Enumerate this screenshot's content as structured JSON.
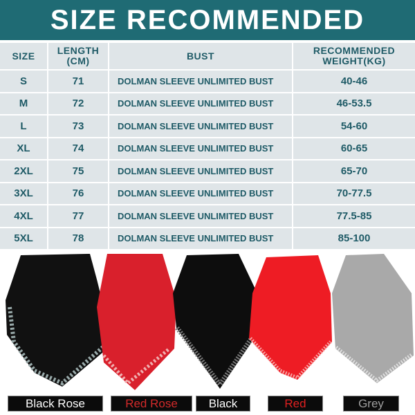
{
  "title": "SIZE RECOMMENDED",
  "table": {
    "headers": [
      "SIZE",
      "LENGTH (CM)",
      "BUST",
      "RECOMMENDED WEIGHT(KG)"
    ],
    "header_lines": {
      "length": [
        "LENGTH",
        "(CM)"
      ],
      "weight": [
        "RECOMMENDED",
        "WEIGHT(KG)"
      ]
    },
    "rows": [
      {
        "size": "S",
        "length": "71",
        "bust": "DOLMAN SLEEVE UNLIMITED BUST",
        "weight": "40-46"
      },
      {
        "size": "M",
        "length": "72",
        "bust": "DOLMAN SLEEVE UNLIMITED BUST",
        "weight": "46-53.5"
      },
      {
        "size": "L",
        "length": "73",
        "bust": "DOLMAN SLEEVE UNLIMITED BUST",
        "weight": "54-60"
      },
      {
        "size": "XL",
        "length": "74",
        "bust": "DOLMAN SLEEVE UNLIMITED BUST",
        "weight": "60-65"
      },
      {
        "size": "2XL",
        "length": "75",
        "bust": "DOLMAN SLEEVE UNLIMITED BUST",
        "weight": "65-70"
      },
      {
        "size": "3XL",
        "length": "76",
        "bust": "DOLMAN SLEEVE UNLIMITED BUST",
        "weight": "70-77.5"
      },
      {
        "size": "4XL",
        "length": "77",
        "bust": "DOLMAN SLEEVE UNLIMITED BUST",
        "weight": "77.5-85"
      },
      {
        "size": "5XL",
        "length": "78",
        "bust": "DOLMAN SLEEVE UNLIMITED BUST",
        "weight": "85-100"
      }
    ]
  },
  "colors": {
    "header_bg": "#1f6b74",
    "text": "#1e5a66",
    "row_bg": "#dfe5e8"
  },
  "variants": [
    {
      "label": "Black Rose",
      "color": "#111111",
      "text_color": "#ffffff"
    },
    {
      "label": "Red Rose",
      "color": "#d9202c",
      "text_color": "#d42a2a"
    },
    {
      "label": "Black",
      "color": "#0d0d0d",
      "text_color": "#ffffff"
    },
    {
      "label": "Red",
      "color": "#ee1c24",
      "text_color": "#e02020"
    },
    {
      "label": "Grey",
      "color": "#a9a9a9",
      "text_color": "#a0a0a0"
    }
  ]
}
